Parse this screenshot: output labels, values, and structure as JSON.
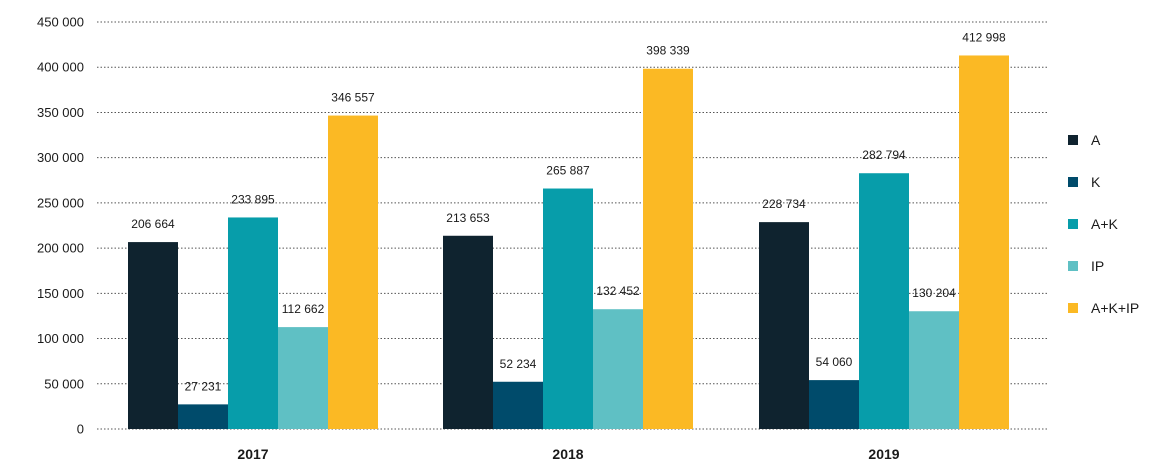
{
  "chart_data": {
    "type": "bar",
    "categories": [
      "2017",
      "2018",
      "2019"
    ],
    "series": [
      {
        "name": "A",
        "values": [
          206664,
          213653,
          228734
        ],
        "color": "#0f232f"
      },
      {
        "name": "K",
        "values": [
          27231,
          52234,
          54060
        ],
        "color": "#004b6b"
      },
      {
        "name": "A+K",
        "values": [
          233895,
          265887,
          282794
        ],
        "color": "#079daa"
      },
      {
        "name": "IP",
        "values": [
          112662,
          132452,
          130204
        ],
        "color": "#5fc0c4"
      },
      {
        "name": "A+K+IP",
        "values": [
          346557,
          398339,
          412998
        ],
        "color": "#fbb924"
      }
    ],
    "data_labels": [
      [
        "206 664",
        "213 653",
        "228 734"
      ],
      [
        "27 231",
        "52 234",
        "54 060"
      ],
      [
        "233 895",
        "265 887",
        "282 794"
      ],
      [
        "112 662",
        "132 452",
        "130 204"
      ],
      [
        "346 557",
        "398 339",
        "412 998"
      ]
    ],
    "y_ticks": [
      {
        "value": 0,
        "label": "0"
      },
      {
        "value": 50000,
        "label": "50 000"
      },
      {
        "value": 100000,
        "label": "100 000"
      },
      {
        "value": 150000,
        "label": "150 000"
      },
      {
        "value": 200000,
        "label": "200 000"
      },
      {
        "value": 250000,
        "label": "250 000"
      },
      {
        "value": 300000,
        "label": "300 000"
      },
      {
        "value": 350000,
        "label": "350 000"
      },
      {
        "value": 400000,
        "label": "400 000"
      },
      {
        "value": 450000,
        "label": "450 000"
      }
    ],
    "ylim": [
      0,
      450000
    ],
    "title": "",
    "xlabel": "",
    "ylabel": "",
    "grid": true,
    "legend_position": "right"
  }
}
